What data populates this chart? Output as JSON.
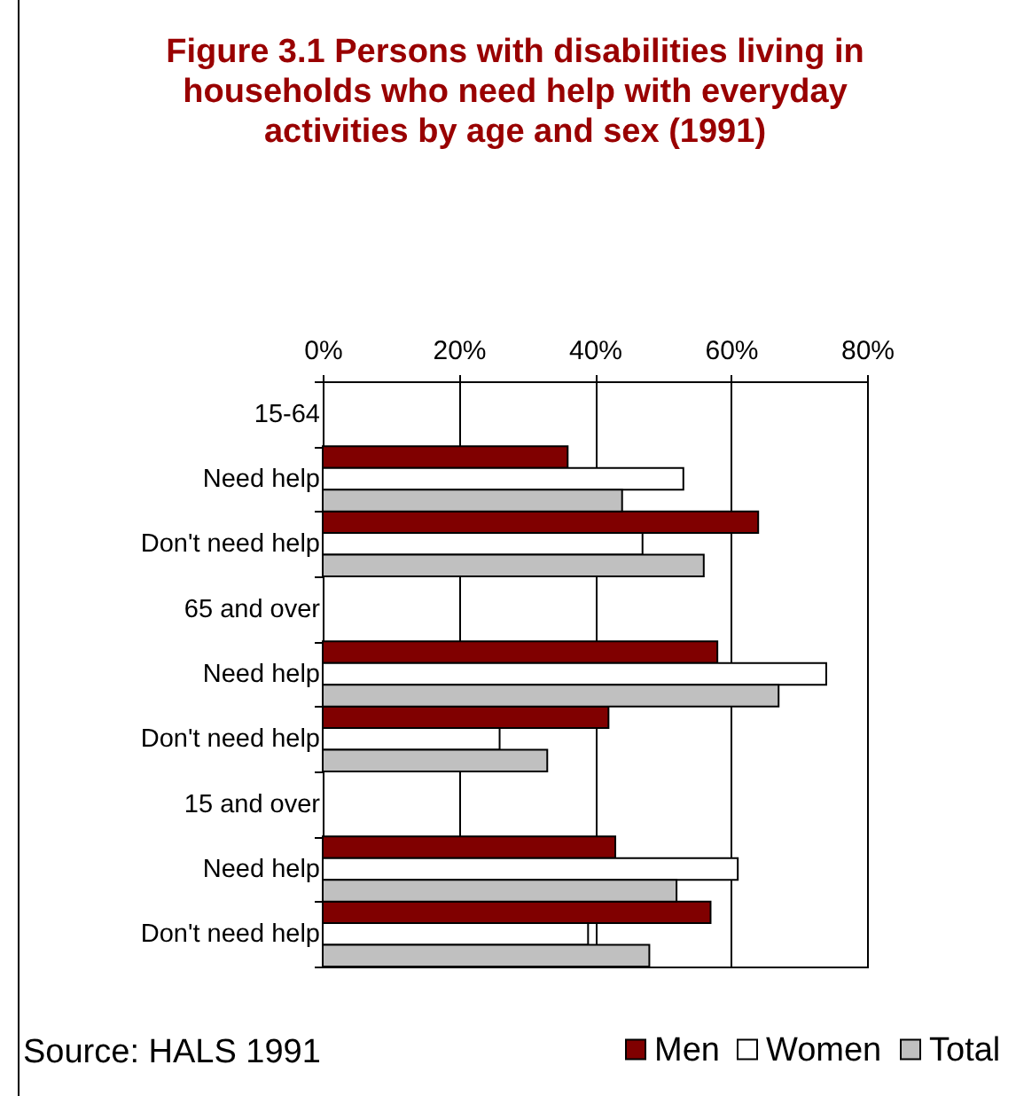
{
  "chart_data": {
    "type": "bar",
    "orientation": "horizontal",
    "title": "Figure 3.1 Persons with disabilities living in households who need help with everyday activities by age and sex  (1991)",
    "categories": [
      "15-64",
      "Need help",
      "Don't need help",
      "65 and over",
      "Need help",
      "Don't need help",
      "15 and over",
      "Need help",
      "Don't need help"
    ],
    "series": [
      {
        "name": "Men",
        "color": "#800000",
        "values": [
          null,
          36,
          64,
          null,
          58,
          42,
          null,
          43,
          57
        ]
      },
      {
        "name": "Women",
        "color": "#ffffff",
        "values": [
          null,
          53,
          47,
          null,
          74,
          26,
          null,
          61,
          39
        ]
      },
      {
        "name": "Total",
        "color": "#c0c0c0",
        "values": [
          null,
          44,
          56,
          null,
          67,
          33,
          null,
          52,
          48
        ]
      }
    ],
    "xlim": [
      0,
      80
    ],
    "xticks": [
      {
        "value": 0,
        "label": "0%"
      },
      {
        "value": 20,
        "label": "20%"
      },
      {
        "value": 40,
        "label": "40%"
      },
      {
        "value": 60,
        "label": "60%"
      },
      {
        "value": 80,
        "label": "80%"
      }
    ],
    "grid": "x",
    "legend": "bottom right",
    "annotations": [
      "Source: HALS 1991"
    ]
  }
}
